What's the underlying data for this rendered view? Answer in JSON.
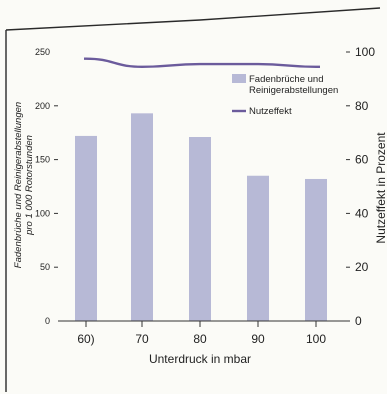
{
  "colors": {
    "paper": "#fbfbf7",
    "frame": "#2a2a2a",
    "bar": "#b7b9d6",
    "line": "#6b5b9c",
    "axis": "#333333",
    "text": "#222222"
  },
  "chart_data": {
    "type": "bar",
    "title": "",
    "categories": [
      "60)",
      "70",
      "80",
      "90",
      "100"
    ],
    "xlabel": "Unterdruck in mbar",
    "ylabel_left": "Fadenbrüche und Reinigerabstellungen pro 1 000 Rotorstunden",
    "ylabel_left_lines": [
      "Fadenbrüche und Reinigerabstellungen",
      "pro 1 000 Rotorstunden"
    ],
    "ylabel_right": "Nutzeffekt in Prozent",
    "ylim_left": [
      0,
      250
    ],
    "yticks_left": [
      0,
      50,
      100,
      150,
      200,
      250
    ],
    "ylim_right": [
      0,
      100
    ],
    "yticks_right": [
      0,
      20,
      40,
      60,
      80,
      100
    ],
    "grid": false,
    "legend_position": "top-right",
    "series": [
      {
        "name": "Fadenbrüche und Reinigerabstellungen",
        "legend_lines": [
          "Fadenbrüche und",
          "Reinigerabstellungen"
        ],
        "type": "bar",
        "axis": "left",
        "values": [
          172,
          193,
          171,
          135,
          132
        ]
      },
      {
        "name": "Nutzeffekt",
        "legend_lines": [
          "Nutzeffekt"
        ],
        "type": "line",
        "axis": "right",
        "values": [
          97.5,
          94.5,
          95.5,
          95.5,
          94.5
        ]
      }
    ]
  }
}
